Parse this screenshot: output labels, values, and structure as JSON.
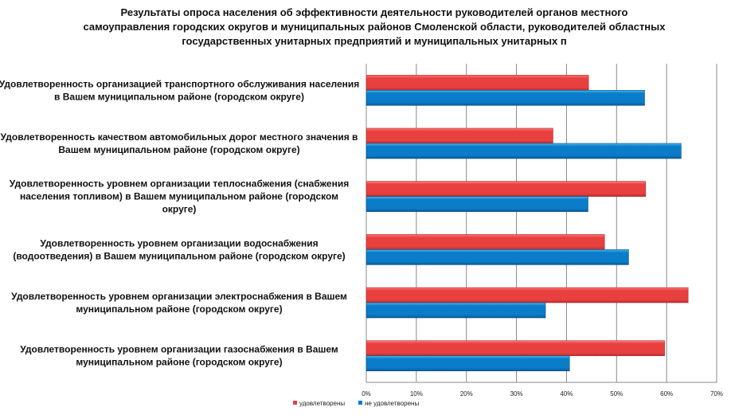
{
  "chart_data": {
    "type": "bar",
    "orientation": "horizontal",
    "title": "Результаты опроса населения об эффективности деятельности руководителей органов местного самоуправления городских округов и муниципальных районов Смоленской области, руководителей областных государственных унитарных предприятий и муниципальных унитарных п",
    "title_lines": [
      "Результаты опроса населения об эффективности деятельности руководителей органов местного",
      "самоуправления городских округов и муниципальных районов Смоленской области, руководителей областных",
      "государственных унитарных предприятий и муниципальных унитарных п"
    ],
    "categories": [
      [
        "Удовлетворенность организацией транспортного обслуживания населения",
        "в Вашем муниципальном районе (городском округе)"
      ],
      [
        "Удовлетворенность качеством автомобильных дорог местного значения в",
        "Вашем муниципальном районе (городском округе)"
      ],
      [
        "Удовлетворенность уровнем организации теплоснабжения (снабжения",
        "населения топливом) в Вашем муниципальном районе (городском",
        "округе)"
      ],
      [
        "Удовлетворенность уровнем организации водоснабжения",
        "(водоотведения) в Вашем муниципальном районе (городском округе)"
      ],
      [
        "Удовлетворенность уровнем организации электроснабжения в Вашем",
        "муниципальном районе (городском округе)"
      ],
      [
        "Удовлетворенность уровнем организации газоснабжения в Вашем",
        "муниципальном районе (городском округе)"
      ]
    ],
    "series": [
      {
        "name": "удовлетворены",
        "color": "#e8403f",
        "values": [
          44.4,
          37.3,
          55.8,
          47.6,
          64.3,
          59.6
        ]
      },
      {
        "name": "не удовлетворены",
        "color": "#0a7cc8",
        "values": [
          55.6,
          62.9,
          44.3,
          52.4,
          35.8,
          40.6
        ]
      }
    ],
    "xlim": [
      0,
      70
    ],
    "xticks": [
      "0%",
      "10%",
      "20%",
      "30%",
      "40%",
      "50%",
      "60%",
      "70%"
    ],
    "xlabel": "",
    "ylabel": "",
    "grid": true,
    "legend_position": "bottom"
  }
}
